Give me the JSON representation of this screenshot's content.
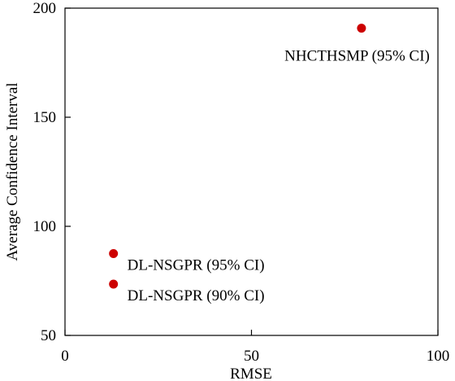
{
  "chart_data": {
    "type": "scatter",
    "title": "",
    "xlabel": "RMSE",
    "ylabel": "Average Confidence Interval",
    "xlim": [
      0,
      100
    ],
    "ylim": [
      50,
      200
    ],
    "xticks": [
      0,
      50,
      100
    ],
    "yticks": [
      50,
      100,
      150,
      200
    ],
    "grid": false,
    "legend": "none",
    "marker_color": "#cc0000",
    "points": [
      {
        "x": 79.5,
        "y": 190.8,
        "label": "NHCTHSMP (95% CI)"
      },
      {
        "x": 13.0,
        "y": 87.5,
        "label": "DL-NSGPR (95% CI)"
      },
      {
        "x": 13.0,
        "y": 73.5,
        "label": "DL-NSGPR (90% CI)"
      }
    ]
  }
}
